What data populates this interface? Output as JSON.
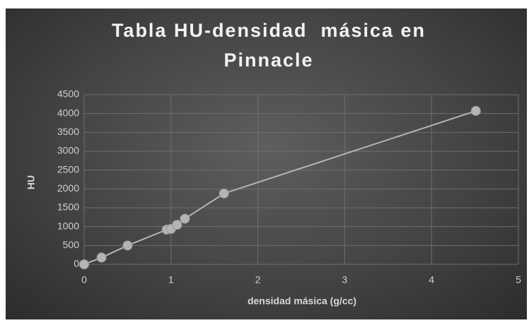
{
  "chart_data": {
    "type": "scatter",
    "title": "Tabla HU-densidad  másica en Pinnacle",
    "x_label": "densidad másica (g/cc)",
    "y_label": "HU",
    "series": [
      {
        "name": "HU",
        "color": "#b4b4b4",
        "x": [
          0,
          0.2,
          0.5,
          0.95,
          1.0,
          1.07,
          1.16,
          1.61,
          4.51
        ],
        "values": [
          0,
          180,
          500,
          920,
          940,
          1050,
          1210,
          1880,
          4070
        ]
      }
    ],
    "xlim": [
      0,
      5
    ],
    "xticks": [
      0,
      1,
      2,
      3,
      4,
      5
    ],
    "ylim": [
      0,
      4500
    ],
    "yticks": [
      0,
      500,
      1000,
      1500,
      2000,
      2500,
      3000,
      3500,
      4000,
      4500
    ],
    "grid": true
  }
}
